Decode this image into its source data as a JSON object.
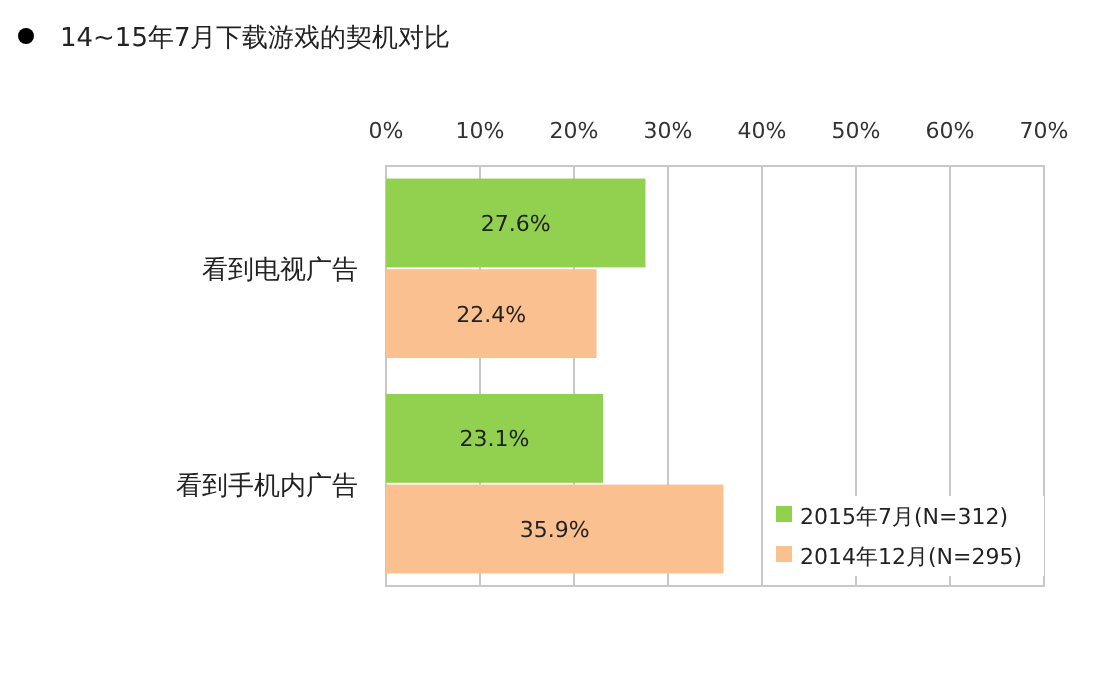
{
  "chart_data": {
    "type": "bar",
    "orientation": "horizontal",
    "title": "14~15年7月下载游戏的契机对比",
    "categories": [
      "看到电视广告",
      "看到手机内广告"
    ],
    "series": [
      {
        "name": "2015年7月(N=312)",
        "color": "#92d050",
        "values": [
          27.6,
          23.1
        ],
        "value_labels": [
          "27.6%",
          "23.1%"
        ]
      },
      {
        "name": "2014年12月(N=295)",
        "color": "#fac090",
        "values": [
          22.4,
          35.9
        ],
        "value_labels": [
          "22.4%",
          "35.9%"
        ]
      }
    ],
    "xlim": [
      0,
      70
    ],
    "xticks": [
      {
        "value": 0,
        "label": "0%"
      },
      {
        "value": 10,
        "label": "10%"
      },
      {
        "value": 20,
        "label": "20%"
      },
      {
        "value": 30,
        "label": "30%"
      },
      {
        "value": 40,
        "label": "40%"
      },
      {
        "value": 50,
        "label": "50%"
      },
      {
        "value": 60,
        "label": "60%"
      },
      {
        "value": 70,
        "label": "70%"
      }
    ],
    "grid": "x",
    "legend": "bottom right"
  }
}
